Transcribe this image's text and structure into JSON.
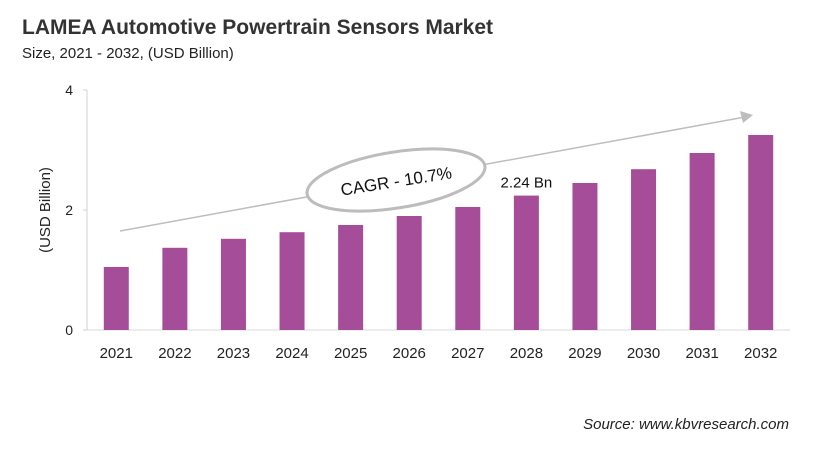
{
  "title": "LAMEA Automotive Powertrain Sensors Market",
  "subtitle": "Size, 2021 - 2032, (USD Billion)",
  "source": "Source: www.kbvresearch.com",
  "chart_data": {
    "type": "bar",
    "categories": [
      "2021",
      "2022",
      "2023",
      "2024",
      "2025",
      "2026",
      "2027",
      "2028",
      "2029",
      "2030",
      "2031",
      "2032"
    ],
    "values": [
      1.05,
      1.37,
      1.52,
      1.63,
      1.75,
      1.9,
      2.05,
      2.24,
      2.45,
      2.68,
      2.95,
      3.25
    ],
    "ylabel": "(USD Billion)",
    "ylim": [
      0,
      4
    ],
    "yticks": [
      0,
      2,
      4
    ],
    "grid": false,
    "bar_color": "#A64D9A",
    "annotations": {
      "cagr": "CAGR - 10.7%",
      "value_label": "2.24 Bn",
      "value_label_category": "2028"
    }
  }
}
